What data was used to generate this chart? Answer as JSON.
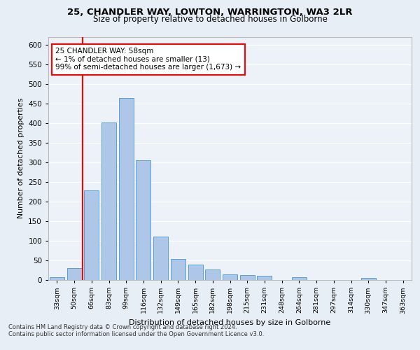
{
  "title1": "25, CHANDLER WAY, LOWTON, WARRINGTON, WA3 2LR",
  "title2": "Size of property relative to detached houses in Golborne",
  "xlabel": "Distribution of detached houses by size in Golborne",
  "ylabel": "Number of detached properties",
  "categories": [
    "33sqm",
    "50sqm",
    "66sqm",
    "83sqm",
    "99sqm",
    "116sqm",
    "132sqm",
    "149sqm",
    "165sqm",
    "182sqm",
    "198sqm",
    "215sqm",
    "231sqm",
    "248sqm",
    "264sqm",
    "281sqm",
    "297sqm",
    "314sqm",
    "330sqm",
    "347sqm",
    "363sqm"
  ],
  "values": [
    7,
    30,
    228,
    402,
    463,
    305,
    110,
    54,
    40,
    27,
    15,
    13,
    11,
    0,
    7,
    0,
    0,
    0,
    5,
    0,
    0
  ],
  "bar_color": "#aec6e8",
  "bar_edge_color": "#5a9fd4",
  "annotation_text": "25 CHANDLER WAY: 58sqm\n← 1% of detached houses are smaller (13)\n99% of semi-detached houses are larger (1,673) →",
  "vline_x_idx": 1,
  "ylim": [
    0,
    620
  ],
  "yticks": [
    0,
    50,
    100,
    150,
    200,
    250,
    300,
    350,
    400,
    450,
    500,
    550,
    600
  ],
  "footer1": "Contains HM Land Registry data © Crown copyright and database right 2024.",
  "footer2": "Contains public sector information licensed under the Open Government Licence v3.0.",
  "bg_color": "#e8eef6",
  "plot_bg_color": "#edf2f8"
}
